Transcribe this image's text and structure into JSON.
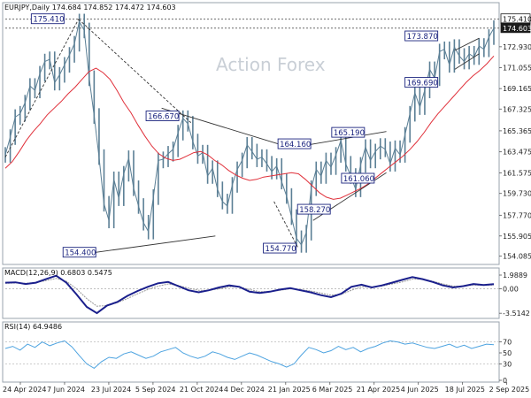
{
  "header": {
    "main": "EURJPY,Daily  174.684 174.852 174.472 174.603",
    "macd": "MACD(12,26,9) 0.6803 0.5475",
    "rsi": "RSI(14) 64.9486"
  },
  "watermark": "Action Forex",
  "colors": {
    "price": "#5b7f95",
    "sma": "#e0303a",
    "trend": "#222222",
    "annotation": "#1a237e",
    "macd": "#1a1f8c",
    "macd_signal": "#999999",
    "rsi": "#4da3e0"
  },
  "chart_data": [
    {
      "type": "line",
      "title": "EURJPY,Daily",
      "ohlc": {
        "open": 174.684,
        "high": 174.852,
        "low": 174.472,
        "close": 174.603
      },
      "ylim": [
        153.5,
        176.5
      ],
      "y_ticks": [
        "175.410",
        "174.603",
        "172.930",
        "171.055",
        "169.165",
        "167.325",
        "165.365",
        "163.475",
        "161.575",
        "159.730",
        "157.770",
        "155.905",
        "154.085"
      ],
      "x_ticks": [
        "24 Apr 2024",
        "7 Jun 2024",
        "23 Jul 2024",
        "5 Sep 2024",
        "21 Oct 2024",
        "4 Dec 2024",
        "21 Jan 2025",
        "6 Mar 2025",
        "21 Apr 2025",
        "4 Jun 2025",
        "18 Jul 2025",
        "2 Sep 2025"
      ],
      "series": [
        {
          "values": [
            163.2,
            164.8,
            166.6,
            166.9,
            167.9,
            169.4,
            169.0,
            170.5,
            171.6,
            171.8,
            169.7,
            170.4,
            171.3,
            172.2,
            173.2,
            175.2,
            174.4,
            170.1,
            166.7,
            163.0,
            158.8,
            157.3,
            161.0,
            159.3,
            161.5,
            162.9,
            160.2,
            158.6,
            157.1,
            156.3,
            159.4,
            162.7,
            162.8,
            163.3,
            163.7,
            165.2,
            166.5,
            166.0,
            164.4,
            163.1,
            163.4,
            161.3,
            162.0,
            160.1,
            159.0,
            158.6,
            160.5,
            161.9,
            162.7,
            164.1,
            163.5,
            162.8,
            163.0,
            162.4,
            161.7,
            162.2,
            160.8,
            159.5,
            157.6,
            155.7,
            155.1,
            156.2,
            160.2,
            161.9,
            161.3,
            162.7,
            162.1,
            163.2,
            164.5,
            162.4,
            161.3,
            160.1,
            162.3,
            163.9,
            162.7,
            163.5,
            164.0,
            163.7,
            162.4,
            163.8,
            163.2,
            165.0,
            166.9,
            168.8,
            167.5,
            169.0,
            170.9,
            170.1,
            172.5,
            172.7,
            171.3,
            172.9,
            172.1,
            171.6,
            172.3,
            172.0,
            173.0,
            172.7,
            173.8,
            174.6
          ],
          "low_whisker_marks": "included"
        },
        {
          "name": "",
          "values": [
            162.0,
            162.6,
            163.5,
            164.5,
            165.3,
            166.0,
            166.8,
            167.4,
            168.0,
            168.7,
            169.3,
            170.0,
            170.7,
            171.0,
            170.6,
            170.0,
            169.0,
            167.9,
            167.0,
            165.9,
            164.9,
            164.0,
            163.3,
            162.9,
            162.7,
            162.8,
            163.1,
            163.4,
            163.5,
            163.2,
            162.7,
            162.3,
            161.8,
            161.4,
            161.1,
            160.9,
            161.0,
            161.2,
            161.3,
            161.4,
            161.5,
            161.6,
            161.5,
            161.0,
            160.4,
            159.8,
            159.4,
            159.2,
            159.3,
            159.6,
            159.9,
            160.2,
            160.6,
            161.1,
            161.6,
            162.1,
            162.6,
            163.1,
            163.7,
            164.4,
            165.2,
            166.1,
            166.9,
            167.6,
            168.3,
            169.0,
            169.7,
            170.3,
            170.8,
            171.4,
            172.1
          ]
        }
      ],
      "annotations": [
        "175.410",
        "166.670",
        "154.400",
        "164.160",
        "165.190",
        "161.060",
        "158.270",
        "154.770",
        "173.870",
        "169.690"
      ],
      "price_tags": [
        "175.410",
        "174.603"
      ]
    },
    {
      "type": "line",
      "title": "MACD(12,26,9)",
      "ylim": [
        -4.0,
        2.5
      ],
      "y_ticks": [
        "1.9889",
        "0.00",
        "-3.5142"
      ],
      "series": [
        {
          "values": [
            0.9,
            0.95,
            0.7,
            0.9,
            1.4,
            1.9,
            0.9,
            -0.8,
            -2.6,
            -3.5,
            -2.4,
            -1.9,
            -1.0,
            -0.3,
            0.3,
            0.8,
            1.0,
            0.4,
            -0.2,
            -0.5,
            -0.2,
            0.2,
            0.5,
            0.3,
            -0.4,
            -0.6,
            -0.4,
            -0.1,
            0.1,
            -0.2,
            -0.5,
            -0.9,
            -1.2,
            -0.7,
            0.3,
            0.6,
            0.2,
            0.5,
            0.9,
            1.3,
            1.7,
            1.4,
            1.0,
            0.5,
            0.2,
            0.4,
            0.7,
            0.55,
            0.68
          ]
        },
        {
          "values": [
            0.8,
            0.85,
            0.8,
            0.9,
            1.2,
            1.5,
            1.1,
            0.0,
            -1.4,
            -2.5,
            -2.4,
            -2.0,
            -1.4,
            -0.7,
            -0.1,
            0.4,
            0.7,
            0.5,
            0.1,
            -0.2,
            -0.2,
            0.0,
            0.3,
            0.3,
            -0.1,
            -0.4,
            -0.4,
            -0.2,
            0.0,
            -0.1,
            -0.3,
            -0.6,
            -0.9,
            -0.8,
            -0.2,
            0.3,
            0.3,
            0.4,
            0.7,
            1.0,
            1.4,
            1.4,
            1.1,
            0.7,
            0.4,
            0.4,
            0.55,
            0.52,
            0.55
          ]
        }
      ]
    },
    {
      "type": "line",
      "title": "RSI(14)",
      "ylim": [
        0,
        100
      ],
      "y_ticks": [
        "70",
        "50",
        "30",
        "0"
      ],
      "series": [
        {
          "values": [
            58,
            62,
            55,
            66,
            60,
            70,
            63,
            68,
            72,
            61,
            45,
            30,
            22,
            34,
            42,
            40,
            48,
            52,
            46,
            40,
            44,
            52,
            56,
            60,
            50,
            44,
            40,
            44,
            52,
            48,
            42,
            38,
            44,
            50,
            46,
            40,
            34,
            30,
            24,
            30,
            46,
            60,
            56,
            50,
            54,
            62,
            56,
            60,
            52,
            58,
            62,
            68,
            72,
            70,
            66,
            68,
            64,
            60,
            58,
            62,
            66,
            60,
            64,
            58,
            62,
            66,
            65
          ]
        }
      ]
    }
  ]
}
